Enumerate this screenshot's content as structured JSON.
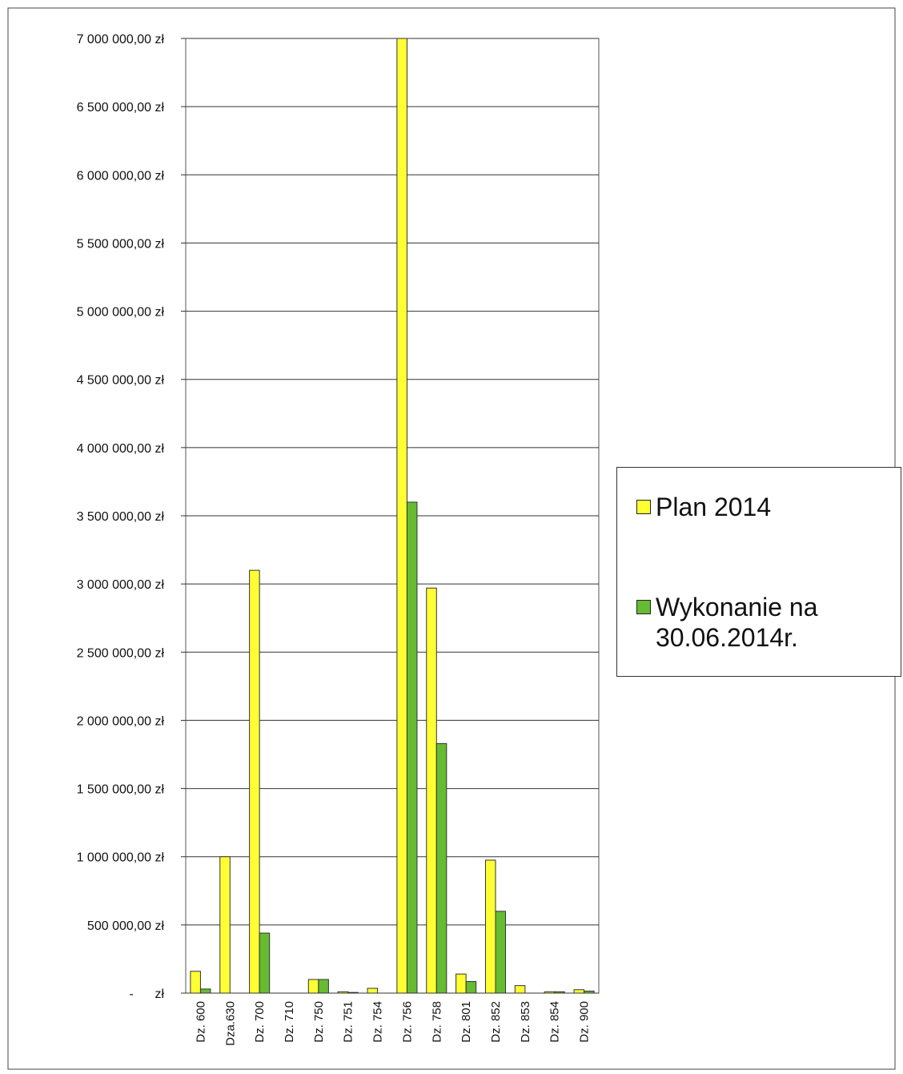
{
  "chart_data": {
    "type": "bar",
    "categories": [
      "Dz. 600",
      "Dza.630",
      "Dz. 700",
      "Dz. 710",
      "Dz. 750",
      "Dz. 751",
      "Dz. 754",
      "Dz. 756",
      "Dz. 758",
      "Dz. 801",
      "Dz. 852",
      "Dz. 853",
      "Dz. 854",
      "Dz. 900"
    ],
    "series": [
      {
        "name": "Plan 2014",
        "color": "#ffff33",
        "values": [
          160000,
          1000000,
          3100000,
          0,
          100000,
          10000,
          35000,
          7000000,
          2970000,
          140000,
          975000,
          55000,
          10000,
          25000
        ]
      },
      {
        "name": "Wykonanie na 30.06.2014r.",
        "color": "#66bb33",
        "values": [
          30000,
          0,
          440000,
          0,
          100000,
          5000,
          0,
          3600000,
          1830000,
          85000,
          600000,
          0,
          10000,
          15000
        ]
      }
    ],
    "ylim": [
      0,
      7000000
    ],
    "yticks": [
      {
        "value": 0,
        "label": "-      zł"
      },
      {
        "value": 500000,
        "label": "500 000,00 zł"
      },
      {
        "value": 1000000,
        "label": "1 000 000,00 zł"
      },
      {
        "value": 1500000,
        "label": "1 500 000,00 zł"
      },
      {
        "value": 2000000,
        "label": "2 000 000,00 zł"
      },
      {
        "value": 2500000,
        "label": "2 500 000,00 zł"
      },
      {
        "value": 3000000,
        "label": "3 000 000,00 zł"
      },
      {
        "value": 3500000,
        "label": "3 500 000,00 zł"
      },
      {
        "value": 4000000,
        "label": "4 000 000,00 zł"
      },
      {
        "value": 4500000,
        "label": "4 500 000,00 zł"
      },
      {
        "value": 5000000,
        "label": "5 000 000,00 zł"
      },
      {
        "value": 5500000,
        "label": "5 500 000,00 zł"
      },
      {
        "value": 6000000,
        "label": "6 000 000,00 zł"
      },
      {
        "value": 6500000,
        "label": "6 500 000,00 zł"
      },
      {
        "value": 7000000,
        "label": "7 000 000,00 zł"
      }
    ],
    "grid": true,
    "legend": "right"
  }
}
